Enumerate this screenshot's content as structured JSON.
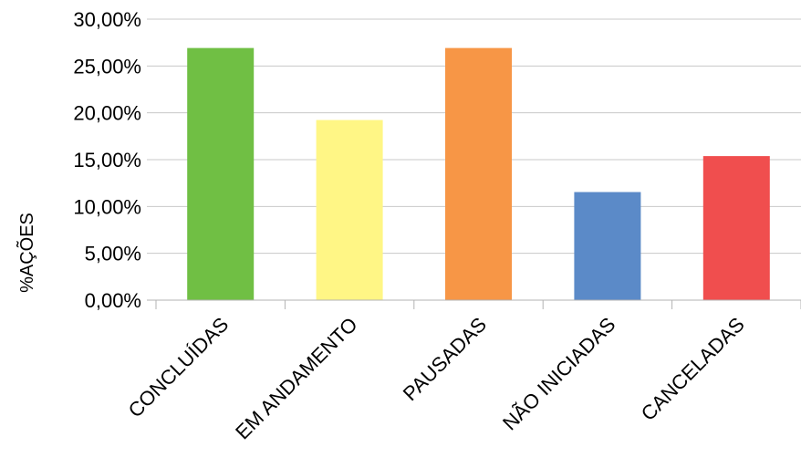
{
  "chart_data": {
    "type": "bar",
    "title": "",
    "xlabel": "",
    "ylabel": "%AÇÕES",
    "categories": [
      "CONCLUÍDAS",
      "EM ANDAMENTO",
      "PAUSADAS",
      "NÃO INICIADAS",
      "CANCELADAS"
    ],
    "values": [
      26.92,
      19.23,
      26.92,
      11.54,
      15.38
    ],
    "colors": [
      "#70bf44",
      "#fff685",
      "#f79646",
      "#5b8ac8",
      "#f04e4e"
    ],
    "ylim": [
      0,
      30
    ],
    "yticks": [
      0,
      5,
      10,
      15,
      20,
      25,
      30
    ],
    "ytick_labels": [
      "0,00%",
      "5,00%",
      "10,00%",
      "15,00%",
      "20,00%",
      "25,00%",
      "30,00%"
    ],
    "grid": true,
    "legend": "none"
  }
}
